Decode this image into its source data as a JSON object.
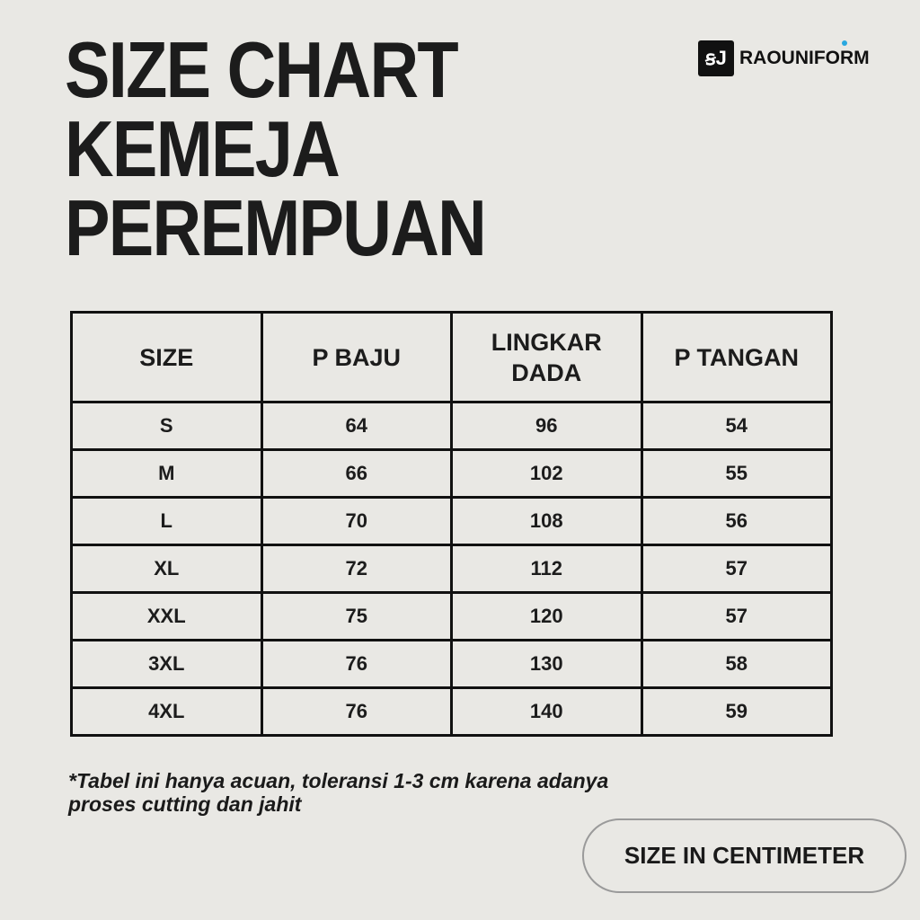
{
  "title": {
    "line1": "SIZE CHART",
    "line2": "KEMEJA",
    "line3": "PEREMPUAN"
  },
  "brand": {
    "logo_text": "ꞩJ",
    "name": "RAOUNIFORM",
    "accent_color": "#29a8e0"
  },
  "table": {
    "headers": [
      "SIZE",
      "P BAJU",
      "LINGKAR DADA",
      "P TANGAN"
    ],
    "rows": [
      [
        "S",
        "64",
        "96",
        "54"
      ],
      [
        "M",
        "66",
        "102",
        "55"
      ],
      [
        "L",
        "70",
        "108",
        "56"
      ],
      [
        "XL",
        "72",
        "112",
        "57"
      ],
      [
        "XXL",
        "75",
        "120",
        "57"
      ],
      [
        "3XL",
        "76",
        "130",
        "58"
      ],
      [
        "4XL",
        "76",
        "140",
        "59"
      ]
    ]
  },
  "note": {
    "line1": "*Tabel ini hanya acuan, toleransi 1-3 cm karena adanya",
    "line2": "proses cutting dan jahit"
  },
  "units_label": "SIZE IN CENTIMETER"
}
